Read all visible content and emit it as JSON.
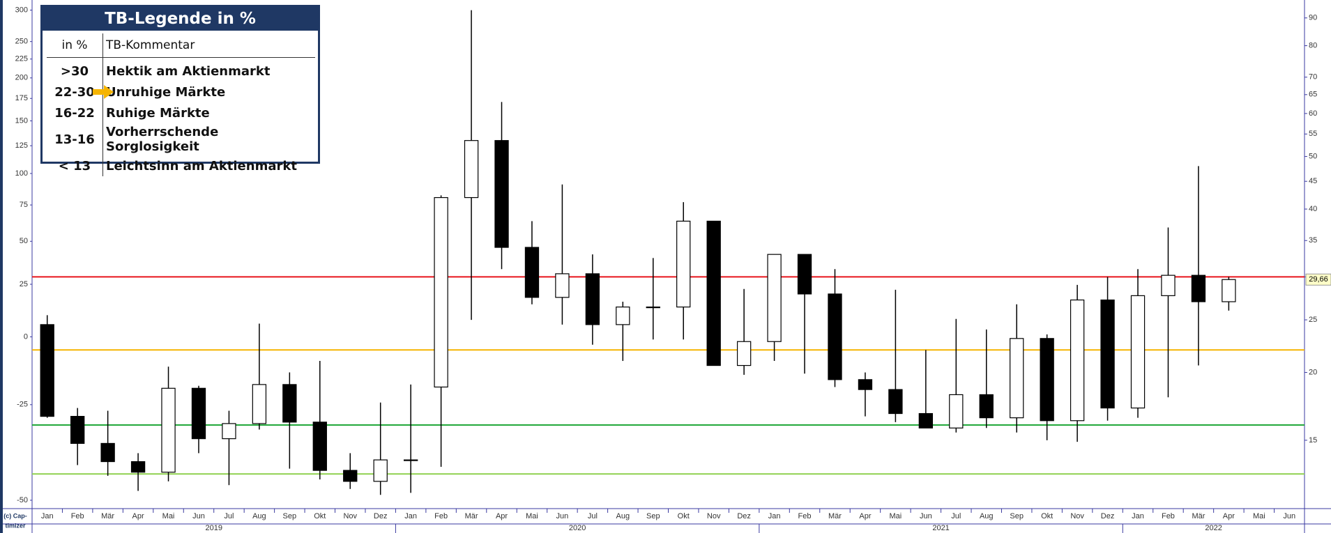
{
  "chart_data": {
    "type": "candlestick",
    "categories": [
      "Jan",
      "Feb",
      "Mär",
      "Apr",
      "Mai",
      "Jun",
      "Jul",
      "Aug",
      "Sep",
      "Okt",
      "Nov",
      "Dez",
      "Jan",
      "Feb",
      "Mär",
      "Apr",
      "Mai",
      "Jun",
      "Jul",
      "Aug",
      "Sep",
      "Okt",
      "Nov",
      "Dez",
      "Jan",
      "Feb",
      "Mär",
      "Apr",
      "Mai",
      "Jun",
      "Jul",
      "Aug",
      "Sep",
      "Okt",
      "Nov",
      "Dez",
      "Jan",
      "Feb",
      "Mär",
      "Apr",
      "Mai",
      "Jun"
    ],
    "years": [
      "2019",
      "2020",
      "2021",
      "2022"
    ],
    "series": [
      {
        "axis": "y2",
        "color": "#000000",
        "open": [
          24.5,
          16.6,
          14.8,
          13.7,
          13.1,
          18.7,
          15.1,
          16.1,
          19.0,
          16.2,
          13.2,
          12.6,
          13.8,
          18.8,
          42.0,
          53.5,
          34.0,
          27.5,
          30.4,
          24.5,
          26.4,
          26.4,
          38.0,
          20.6,
          22.8,
          33.0,
          27.9,
          19.4,
          18.6,
          16.8,
          15.8,
          18.2,
          16.5,
          23.1,
          16.3,
          27.2,
          17.2,
          27.7,
          30.2,
          27.0,
          null,
          null
        ],
        "high": [
          25.5,
          17.2,
          17.0,
          14.2,
          20.5,
          18.9,
          17.0,
          24.6,
          20.0,
          21.0,
          14.2,
          17.6,
          19.0,
          42.4,
          93.0,
          63.0,
          38.0,
          44.4,
          33.0,
          27.0,
          32.5,
          41.2,
          38.0,
          28.5,
          33.0,
          33.0,
          31.0,
          20.0,
          28.4,
          22.0,
          25.1,
          24.0,
          26.7,
          23.5,
          29.0,
          30.0,
          31.0,
          37.0,
          48.0,
          30.0,
          null,
          null
        ],
        "low": [
          16.5,
          13.5,
          12.9,
          12.1,
          12.6,
          14.2,
          12.4,
          15.7,
          13.3,
          12.7,
          12.2,
          11.9,
          12.0,
          13.4,
          25.0,
          31.0,
          26.7,
          24.5,
          22.5,
          21.0,
          23.0,
          23.0,
          20.7,
          19.8,
          21.0,
          19.9,
          18.8,
          16.6,
          16.2,
          15.8,
          15.5,
          15.8,
          15.5,
          15.0,
          14.9,
          16.3,
          16.5,
          18.0,
          20.6,
          26.0,
          null,
          null
        ],
        "close": [
          16.6,
          14.8,
          13.7,
          13.1,
          18.7,
          15.1,
          16.1,
          19.0,
          16.2,
          13.2,
          12.6,
          13.8,
          13.8,
          42.0,
          53.5,
          34.0,
          27.5,
          30.4,
          24.5,
          26.4,
          26.4,
          38.0,
          20.6,
          22.8,
          33.0,
          27.9,
          19.4,
          18.6,
          16.8,
          15.8,
          18.2,
          16.5,
          23.1,
          16.3,
          27.2,
          17.2,
          27.7,
          30.2,
          27.0,
          29.66,
          null,
          null
        ]
      }
    ],
    "yscale": "log",
    "ylim": [
      -51.46,
      312.6
    ],
    "yticks": [
      300,
      250,
      225,
      200,
      175,
      150,
      125,
      100,
      75,
      50,
      25,
      0,
      -25,
      -50
    ],
    "y2scale": "log",
    "y2lim": [
      11.29,
      95.97
    ],
    "y2ticks": [
      15,
      20,
      25,
      30,
      35,
      40,
      45,
      50,
      55,
      60,
      65,
      70,
      80,
      90
    ],
    "hlines": [
      {
        "value": 30,
        "color": "#e8141b"
      },
      {
        "value": 22,
        "color": "#f5b400"
      },
      {
        "value": 16,
        "color": "#22a83a"
      },
      {
        "value": 13,
        "color": "#8fd14f"
      }
    ],
    "current": {
      "value": 29.66,
      "label": "29,66"
    },
    "copyright": [
      "(c) Cap-",
      "timizer"
    ],
    "legend": {
      "title": "TB-Legende in %",
      "header": [
        "in %",
        "TB-Kommentar"
      ],
      "rows": [
        [
          ">30",
          "Hektik am Aktienmarkt"
        ],
        [
          "22-30",
          "Unruhige Märkte"
        ],
        [
          "16-22",
          "Ruhige Märkte"
        ],
        [
          "13-16",
          "Vorherrschende Sorglosigkeit"
        ],
        [
          "< 13",
          "Leichtsinn am Aktienmarkt"
        ]
      ]
    }
  }
}
